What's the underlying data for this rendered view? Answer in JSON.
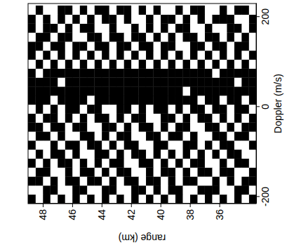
{
  "chart_data": {
    "type": "heatmap",
    "x_label": "Doppler (m/s)",
    "y_label": "range (km)",
    "xlim": [
      -215,
      230
    ],
    "ylim": [
      33.5,
      49
    ],
    "xticks": [
      -200,
      0,
      200
    ],
    "yticks": [
      36,
      38,
      40,
      42,
      44,
      46,
      48
    ],
    "x": [
      -205,
      -185,
      -165,
      -145,
      -125,
      -105,
      -85,
      -65,
      -45,
      -25,
      -5,
      15,
      35,
      55,
      75,
      95,
      115,
      135,
      155,
      175,
      195,
      215
    ],
    "y": [
      33.75,
      34.25,
      34.75,
      35.25,
      35.75,
      36.25,
      36.75,
      37.25,
      37.75,
      38.25,
      38.75,
      39.25,
      39.75,
      40.25,
      40.75,
      41.25,
      41.75,
      42.25,
      42.75,
      43.25,
      43.75,
      44.25,
      44.75,
      45.25,
      45.75,
      46.25,
      46.75,
      47.25,
      47.75,
      48.25,
      48.75
    ],
    "values": [
      [
        1,
        0,
        1,
        1,
        0,
        0,
        1,
        0,
        1,
        1,
        0,
        1,
        1,
        1,
        1,
        0,
        1,
        0,
        0,
        1,
        1,
        0
      ],
      [
        0,
        1,
        1,
        0,
        1,
        0,
        0,
        1,
        1,
        0,
        1,
        0,
        1,
        1,
        1,
        1,
        0,
        1,
        1,
        0,
        0,
        1
      ],
      [
        1,
        1,
        0,
        0,
        1,
        1,
        0,
        1,
        0,
        1,
        1,
        1,
        1,
        0,
        1,
        0,
        1,
        1,
        0,
        1,
        0,
        1
      ],
      [
        0,
        0,
        1,
        1,
        0,
        1,
        1,
        0,
        1,
        0,
        0,
        1,
        1,
        1,
        1,
        1,
        0,
        0,
        1,
        1,
        1,
        0
      ],
      [
        1,
        0,
        0,
        1,
        1,
        0,
        1,
        1,
        0,
        1,
        1,
        0,
        1,
        1,
        1,
        0,
        1,
        1,
        0,
        0,
        1,
        1
      ],
      [
        0,
        1,
        1,
        0,
        0,
        1,
        0,
        1,
        1,
        0,
        1,
        1,
        1,
        1,
        0,
        1,
        0,
        1,
        1,
        0,
        1,
        0
      ],
      [
        1,
        1,
        0,
        1,
        0,
        0,
        1,
        0,
        1,
        1,
        0,
        1,
        1,
        1,
        1,
        0,
        1,
        0,
        1,
        1,
        0,
        0
      ],
      [
        0,
        1,
        0,
        1,
        1,
        1,
        0,
        0,
        0,
        1,
        1,
        0,
        1,
        1,
        1,
        1,
        0,
        1,
        0,
        0,
        1,
        1
      ],
      [
        1,
        0,
        1,
        0,
        1,
        0,
        1,
        1,
        0,
        0,
        1,
        1,
        1,
        1,
        1,
        0,
        1,
        1,
        1,
        0,
        0,
        1
      ],
      [
        0,
        0,
        1,
        1,
        0,
        1,
        1,
        0,
        1,
        1,
        0,
        1,
        0,
        1,
        1,
        1,
        0,
        0,
        1,
        1,
        1,
        0
      ],
      [
        1,
        1,
        0,
        0,
        1,
        0,
        0,
        1,
        1,
        0,
        1,
        1,
        1,
        1,
        1,
        0,
        1,
        0,
        0,
        1,
        0,
        1
      ],
      [
        0,
        1,
        1,
        1,
        0,
        1,
        0,
        1,
        0,
        1,
        0,
        1,
        1,
        1,
        1,
        1,
        0,
        1,
        1,
        0,
        1,
        0
      ],
      [
        1,
        0,
        0,
        1,
        1,
        0,
        1,
        0,
        1,
        1,
        1,
        1,
        1,
        1,
        1,
        0,
        1,
        1,
        0,
        1,
        1,
        0
      ],
      [
        0,
        1,
        1,
        0,
        0,
        1,
        1,
        1,
        0,
        0,
        1,
        1,
        1,
        1,
        1,
        1,
        0,
        0,
        1,
        0,
        0,
        1
      ],
      [
        1,
        0,
        1,
        1,
        1,
        0,
        0,
        1,
        1,
        0,
        0,
        1,
        1,
        1,
        1,
        0,
        1,
        1,
        0,
        1,
        1,
        0
      ],
      [
        0,
        1,
        0,
        0,
        1,
        1,
        0,
        0,
        1,
        1,
        1,
        1,
        1,
        1,
        1,
        1,
        0,
        1,
        1,
        0,
        0,
        1
      ],
      [
        1,
        1,
        1,
        0,
        0,
        1,
        1,
        0,
        0,
        1,
        0,
        1,
        1,
        1,
        1,
        0,
        1,
        0,
        1,
        1,
        0,
        0
      ],
      [
        0,
        0,
        1,
        1,
        0,
        0,
        1,
        1,
        1,
        0,
        1,
        1,
        1,
        1,
        1,
        1,
        0,
        1,
        0,
        0,
        1,
        1
      ],
      [
        1,
        0,
        0,
        1,
        1,
        1,
        0,
        1,
        0,
        1,
        1,
        1,
        1,
        1,
        1,
        0,
        1,
        1,
        1,
        0,
        0,
        1
      ],
      [
        0,
        1,
        1,
        0,
        1,
        0,
        1,
        0,
        1,
        0,
        0,
        1,
        1,
        1,
        1,
        1,
        0,
        0,
        1,
        1,
        1,
        0
      ],
      [
        1,
        1,
        0,
        1,
        0,
        1,
        0,
        1,
        1,
        1,
        0,
        1,
        1,
        1,
        1,
        0,
        1,
        1,
        0,
        0,
        1,
        1
      ],
      [
        0,
        0,
        1,
        0,
        1,
        1,
        1,
        0,
        0,
        1,
        1,
        1,
        1,
        1,
        1,
        1,
        0,
        1,
        1,
        0,
        0,
        1
      ],
      [
        1,
        0,
        1,
        1,
        0,
        0,
        1,
        1,
        0,
        0,
        1,
        0,
        1,
        1,
        1,
        0,
        1,
        0,
        1,
        1,
        1,
        0
      ],
      [
        0,
        1,
        0,
        1,
        1,
        0,
        0,
        1,
        1,
        1,
        0,
        1,
        1,
        1,
        1,
        1,
        0,
        1,
        0,
        1,
        0,
        1
      ],
      [
        1,
        1,
        1,
        0,
        0,
        1,
        1,
        0,
        1,
        0,
        1,
        1,
        1,
        1,
        1,
        0,
        1,
        1,
        0,
        0,
        1,
        0
      ],
      [
        0,
        0,
        1,
        1,
        1,
        0,
        1,
        0,
        0,
        1,
        1,
        1,
        1,
        1,
        1,
        1,
        0,
        0,
        1,
        1,
        0,
        1
      ],
      [
        1,
        0,
        0,
        0,
        1,
        1,
        0,
        1,
        1,
        0,
        0,
        1,
        1,
        0,
        1,
        0,
        1,
        1,
        1,
        0,
        1,
        1
      ],
      [
        0,
        1,
        1,
        0,
        0,
        1,
        1,
        0,
        1,
        1,
        1,
        0,
        1,
        1,
        1,
        1,
        0,
        1,
        0,
        1,
        0,
        0
      ],
      [
        1,
        1,
        0,
        1,
        1,
        0,
        0,
        1,
        0,
        1,
        0,
        1,
        1,
        1,
        1,
        0,
        1,
        0,
        1,
        1,
        1,
        0
      ],
      [
        0,
        0,
        1,
        1,
        0,
        1,
        0,
        1,
        1,
        0,
        1,
        1,
        1,
        1,
        0,
        1,
        0,
        1,
        1,
        0,
        0,
        1
      ],
      [
        1,
        0,
        1,
        0,
        1,
        0,
        1,
        0,
        1,
        1,
        0,
        1,
        1,
        1,
        1,
        0,
        1,
        1,
        0,
        1,
        1,
        0
      ]
    ]
  }
}
